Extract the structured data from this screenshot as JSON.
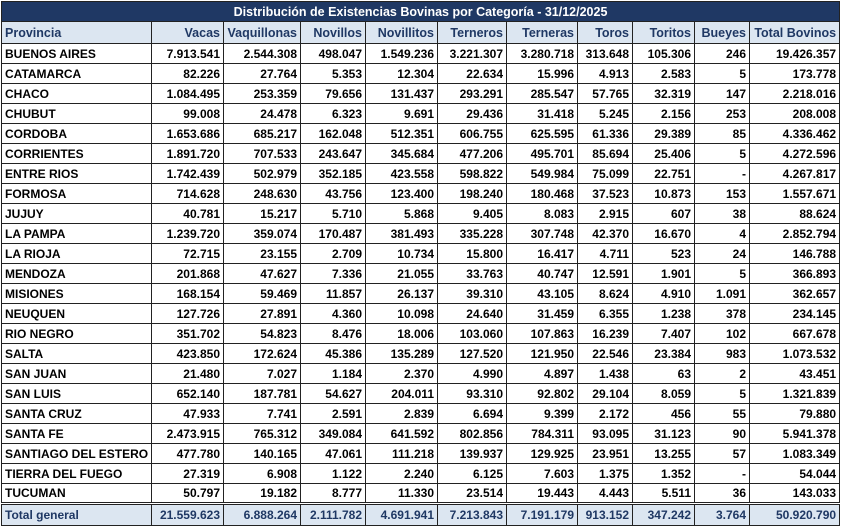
{
  "table": {
    "title": "Distribución de Existencias Bovinas por Categoría - 31/12/2025",
    "headers": [
      "Provincia",
      "Vacas",
      "Vaquillonas",
      "Novillos",
      "Novillitos",
      "Terneros",
      "Terneras",
      "Toros",
      "Toritos",
      "Bueyes",
      "Total Bovinos"
    ],
    "rows": [
      [
        "BUENOS AIRES",
        "7.913.541",
        "2.544.308",
        "498.047",
        "1.549.236",
        "3.221.307",
        "3.280.718",
        "313.648",
        "105.306",
        "246",
        "19.426.357"
      ],
      [
        "CATAMARCA",
        "82.226",
        "27.764",
        "5.353",
        "12.304",
        "22.634",
        "15.996",
        "4.913",
        "2.583",
        "5",
        "173.778"
      ],
      [
        "CHACO",
        "1.084.495",
        "253.359",
        "79.656",
        "131.437",
        "293.291",
        "285.547",
        "57.765",
        "32.319",
        "147",
        "2.218.016"
      ],
      [
        "CHUBUT",
        "99.008",
        "24.478",
        "6.323",
        "9.691",
        "29.436",
        "31.418",
        "5.245",
        "2.156",
        "253",
        "208.008"
      ],
      [
        "CORDOBA",
        "1.653.686",
        "685.217",
        "162.048",
        "512.351",
        "606.755",
        "625.595",
        "61.336",
        "29.389",
        "85",
        "4.336.462"
      ],
      [
        "CORRIENTES",
        "1.891.720",
        "707.533",
        "243.647",
        "345.684",
        "477.206",
        "495.701",
        "85.694",
        "25.406",
        "5",
        "4.272.596"
      ],
      [
        "ENTRE RIOS",
        "1.742.439",
        "502.979",
        "352.185",
        "423.558",
        "598.822",
        "549.984",
        "75.099",
        "22.751",
        "-",
        "4.267.817"
      ],
      [
        "FORMOSA",
        "714.628",
        "248.630",
        "43.756",
        "123.400",
        "198.240",
        "180.468",
        "37.523",
        "10.873",
        "153",
        "1.557.671"
      ],
      [
        "JUJUY",
        "40.781",
        "15.217",
        "5.710",
        "5.868",
        "9.405",
        "8.083",
        "2.915",
        "607",
        "38",
        "88.624"
      ],
      [
        "LA PAMPA",
        "1.239.720",
        "359.074",
        "170.487",
        "381.493",
        "335.228",
        "307.748",
        "42.370",
        "16.670",
        "4",
        "2.852.794"
      ],
      [
        "LA RIOJA",
        "72.715",
        "23.155",
        "2.709",
        "10.734",
        "15.800",
        "16.417",
        "4.711",
        "523",
        "24",
        "146.788"
      ],
      [
        "MENDOZA",
        "201.868",
        "47.627",
        "7.336",
        "21.055",
        "33.763",
        "40.747",
        "12.591",
        "1.901",
        "5",
        "366.893"
      ],
      [
        "MISIONES",
        "168.154",
        "59.469",
        "11.857",
        "26.137",
        "39.310",
        "43.105",
        "8.624",
        "4.910",
        "1.091",
        "362.657"
      ],
      [
        "NEUQUEN",
        "127.726",
        "27.891",
        "4.360",
        "10.098",
        "24.640",
        "31.459",
        "6.355",
        "1.238",
        "378",
        "234.145"
      ],
      [
        "RIO NEGRO",
        "351.702",
        "54.823",
        "8.476",
        "18.006",
        "103.060",
        "107.863",
        "16.239",
        "7.407",
        "102",
        "667.678"
      ],
      [
        "SALTA",
        "423.850",
        "172.624",
        "45.386",
        "135.289",
        "127.520",
        "121.950",
        "22.546",
        "23.384",
        "983",
        "1.073.532"
      ],
      [
        "SAN JUAN",
        "21.480",
        "7.027",
        "1.184",
        "2.370",
        "4.990",
        "4.897",
        "1.438",
        "63",
        "2",
        "43.451"
      ],
      [
        "SAN LUIS",
        "652.140",
        "187.781",
        "54.627",
        "204.011",
        "93.310",
        "92.802",
        "29.104",
        "8.059",
        "5",
        "1.321.839"
      ],
      [
        "SANTA CRUZ",
        "47.933",
        "7.741",
        "2.591",
        "2.839",
        "6.694",
        "9.399",
        "2.172",
        "456",
        "55",
        "79.880"
      ],
      [
        "SANTA FE",
        "2.473.915",
        "765.312",
        "349.084",
        "641.592",
        "802.856",
        "784.311",
        "93.095",
        "31.123",
        "90",
        "5.941.378"
      ],
      [
        "SANTIAGO DEL ESTERO",
        "477.780",
        "140.165",
        "47.061",
        "111.218",
        "139.937",
        "129.925",
        "23.951",
        "13.255",
        "57",
        "1.083.349"
      ],
      [
        "TIERRA DEL FUEGO",
        "27.319",
        "6.908",
        "1.122",
        "2.240",
        "6.125",
        "7.603",
        "1.375",
        "1.352",
        "-",
        "54.044"
      ],
      [
        "TUCUMAN",
        "50.797",
        "19.182",
        "8.777",
        "11.330",
        "23.514",
        "19.443",
        "4.443",
        "5.511",
        "36",
        "143.033"
      ]
    ],
    "total": [
      "Total general",
      "21.559.623",
      "6.888.264",
      "2.111.782",
      "4.691.941",
      "7.213.843",
      "7.191.179",
      "913.152",
      "347.242",
      "3.764",
      "50.920.790"
    ]
  }
}
